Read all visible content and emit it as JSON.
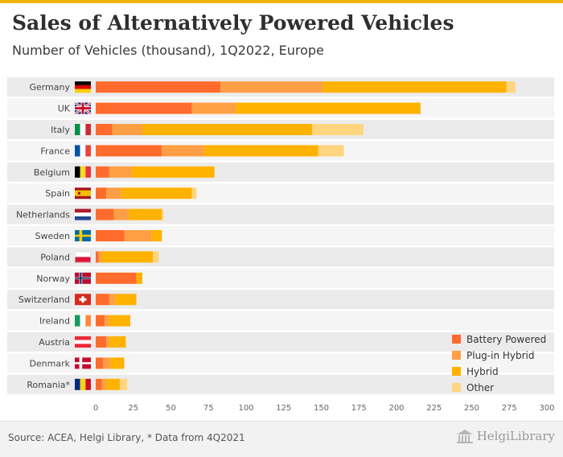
{
  "title": "Sales of Alternatively Powered Vehicles",
  "subtitle": "Number of Vehicles (thousand), 1Q2022, Europe",
  "source": "Source: ACEA, Helgi Library, * Data from 4Q2021",
  "brand": "HelgiLibrary",
  "chart_data": {
    "type": "bar",
    "orientation": "horizontal",
    "stacked": true,
    "categories": [
      "Germany",
      "UK",
      "Italy",
      "France",
      "Belgium",
      "Spain",
      "Netherlands",
      "Sweden",
      "Poland",
      "Norway",
      "Switzerland",
      "Ireland",
      "Austria",
      "Denmark",
      "Romania*"
    ],
    "series": [
      {
        "name": "Battery Powered",
        "color": "#ff6b2c",
        "values": [
          83,
          64,
          11,
          44,
          9,
          7,
          12,
          19,
          2,
          27,
          9,
          6,
          7,
          5,
          4
        ]
      },
      {
        "name": "Plug-in Hybrid",
        "color": "#ff9f45",
        "values": [
          68,
          29,
          20,
          28,
          15,
          10,
          10,
          18,
          2,
          0,
          4,
          3,
          2,
          5,
          3
        ]
      },
      {
        "name": "Hybrid",
        "color": "#ffb200",
        "values": [
          122,
          123,
          113,
          76,
          55,
          47,
          22,
          7,
          34,
          4,
          14,
          14,
          11,
          9,
          9
        ]
      },
      {
        "name": "Other",
        "color": "#ffd580",
        "values": [
          6,
          0,
          34,
          17,
          0,
          3,
          1,
          0,
          4,
          0,
          0,
          0,
          0,
          0,
          5
        ]
      }
    ],
    "xlim": [
      0,
      300
    ],
    "xticks": [
      "0",
      "25",
      "50",
      "75",
      "100",
      "125",
      "150",
      "175",
      "200",
      "225",
      "250",
      "275",
      "300"
    ],
    "grid": false,
    "legend_position": "bottom-right",
    "flags": {
      "Germany": "germany",
      "UK": "uk",
      "Italy": "italy",
      "France": "france",
      "Belgium": "belgium",
      "Spain": "spain",
      "Netherlands": "netherlands",
      "Sweden": "sweden",
      "Poland": "poland",
      "Norway": "norway",
      "Switzerland": "switzerland",
      "Ireland": "ireland",
      "Austria": "austria",
      "Denmark": "denmark",
      "Romania*": "romania"
    }
  }
}
